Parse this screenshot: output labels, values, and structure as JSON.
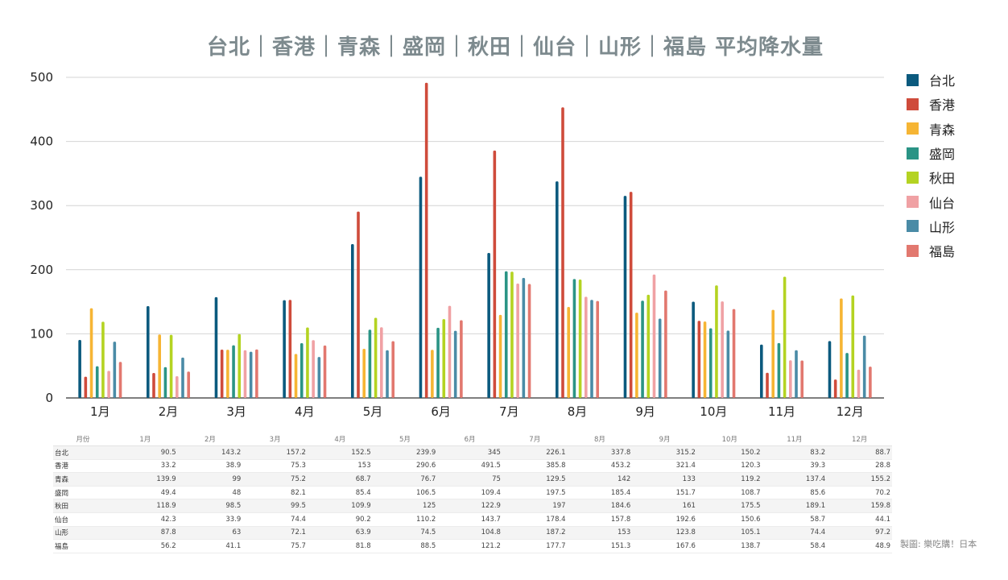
{
  "chart_data": {
    "type": "bar",
    "title": "台北｜香港｜青森｜盛岡｜秋田｜仙台｜山形｜福島 平均降水量",
    "categories": [
      "1月",
      "2月",
      "3月",
      "4月",
      "5月",
      "6月",
      "7月",
      "8月",
      "9月",
      "10月",
      "11月",
      "12月"
    ],
    "ylim": [
      0,
      500
    ],
    "yticks": [
      0,
      100,
      200,
      300,
      400,
      500
    ],
    "grid": true,
    "legend_position": "right",
    "series": [
      {
        "name": "台北",
        "color": "#0b5a7e",
        "values": [
          90.5,
          143.2,
          157.2,
          152.5,
          239.9,
          345,
          226.1,
          337.8,
          315.2,
          150.2,
          83.2,
          88.7
        ]
      },
      {
        "name": "香港",
        "color": "#cf4b3b",
        "values": [
          33.2,
          38.9,
          75.3,
          153,
          290.6,
          491.5,
          385.8,
          453.2,
          321.4,
          120.3,
          39.3,
          28.8
        ]
      },
      {
        "name": "青森",
        "color": "#f6b534",
        "values": [
          139.9,
          99,
          75.2,
          68.7,
          76.7,
          75,
          129.5,
          142,
          133,
          119.2,
          137.4,
          155.2
        ]
      },
      {
        "name": "盛岡",
        "color": "#2a9485",
        "values": [
          49.4,
          48,
          82.1,
          85.4,
          106.5,
          109.4,
          197.5,
          185.4,
          151.7,
          108.7,
          85.6,
          70.2
        ]
      },
      {
        "name": "秋田",
        "color": "#b4d322",
        "values": [
          118.9,
          98.5,
          99.5,
          109.9,
          125,
          122.9,
          197,
          184.6,
          161,
          175.5,
          189.1,
          159.8
        ]
      },
      {
        "name": "仙台",
        "color": "#f0a1a4",
        "values": [
          42.3,
          33.9,
          74.4,
          90.2,
          110.2,
          143.7,
          178.4,
          157.8,
          192.6,
          150.6,
          58.7,
          44.1
        ]
      },
      {
        "name": "山形",
        "color": "#4a8ba6",
        "values": [
          87.8,
          63,
          72.1,
          63.9,
          74.5,
          104.8,
          187.2,
          153,
          123.8,
          105.1,
          74.4,
          97.2
        ]
      },
      {
        "name": "福島",
        "color": "#e2786f",
        "values": [
          56.2,
          41.1,
          75.7,
          81.8,
          88.5,
          121.2,
          177.7,
          151.3,
          167.6,
          138.7,
          58.4,
          48.9
        ]
      }
    ]
  },
  "table": {
    "header_first": "月份",
    "months": [
      "1月",
      "2月",
      "3月",
      "4月",
      "5月",
      "6月",
      "7月",
      "8月",
      "9月",
      "10月",
      "11月",
      "12月"
    ]
  },
  "credit": "製圖: 樂吃購！日本"
}
